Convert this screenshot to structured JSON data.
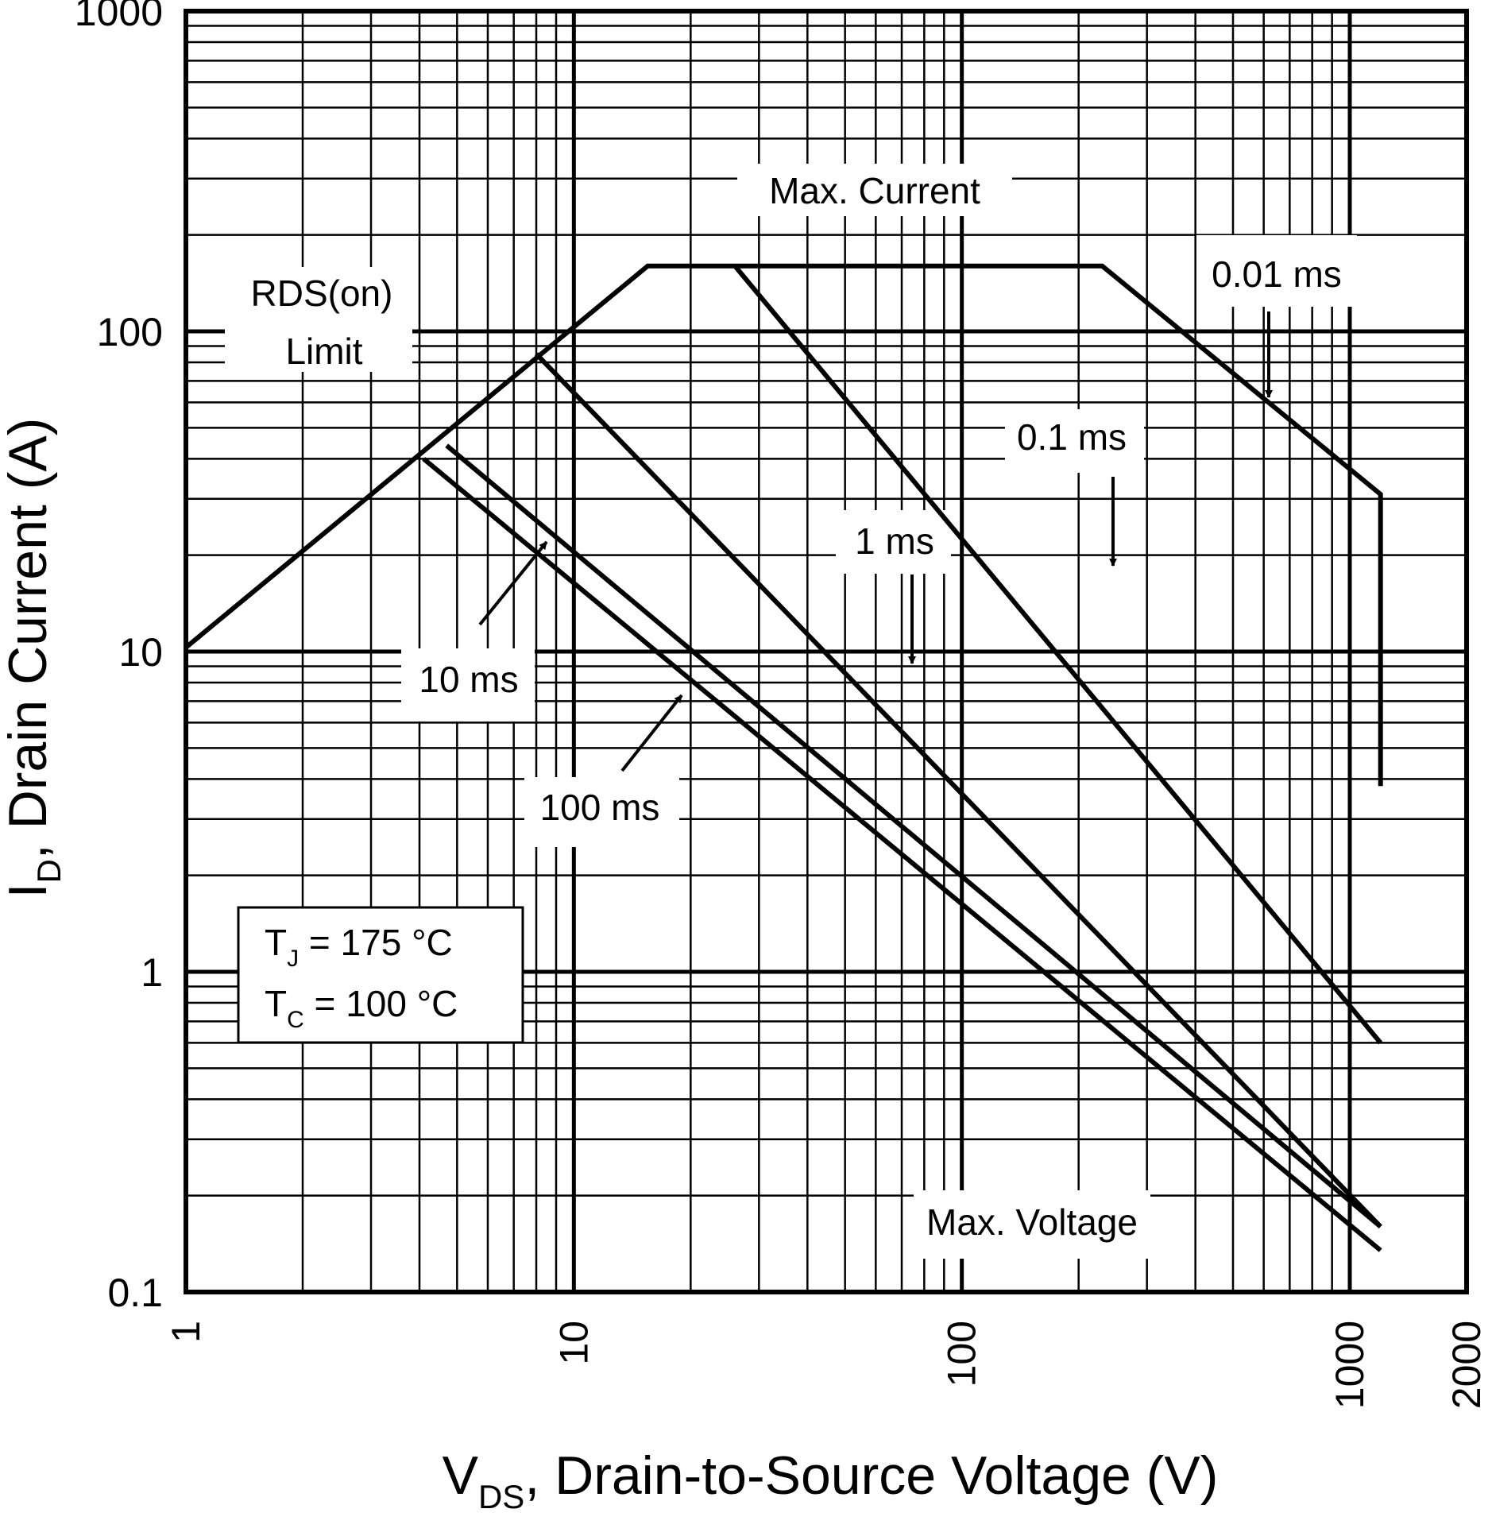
{
  "chart_data": {
    "type": "line",
    "x_scale": "log",
    "y_scale": "log",
    "xlim": [
      1,
      2000
    ],
    "ylim": [
      0.1,
      1000
    ],
    "grid": true,
    "xlabel": {
      "main": "V",
      "sub": "DS",
      "rest": ", Drain-to-Source Voltage (V)"
    },
    "ylabel": {
      "main": "I",
      "sub": "D",
      "rest": ", Drain Current (A)"
    },
    "x_ticks": [
      {
        "value": 1,
        "label": "1"
      },
      {
        "value": 10,
        "label": "10"
      },
      {
        "value": 100,
        "label": "100"
      },
      {
        "value": 1000,
        "label": "1000"
      },
      {
        "value": 2000,
        "label": "2000"
      }
    ],
    "y_ticks": [
      {
        "value": 0.1,
        "label": "0.1"
      },
      {
        "value": 1,
        "label": "1"
      },
      {
        "value": 10,
        "label": "10"
      },
      {
        "value": 100,
        "label": "100"
      },
      {
        "value": 1000,
        "label": "1000"
      }
    ],
    "series": [
      {
        "points": [
          [
            1,
            10.3
          ],
          [
            15.5,
            160
          ],
          [
            230,
            160
          ],
          [
            1200,
            31
          ],
          [
            1200,
            3.8
          ]
        ]
      },
      {
        "points": [
          [
            26,
            160
          ],
          [
            1200,
            0.6
          ]
        ]
      },
      {
        "points": [
          [
            8,
            85
          ],
          [
            1200,
            0.16
          ]
        ]
      },
      {
        "points": [
          [
            4.7,
            44
          ],
          [
            1200,
            0.16
          ]
        ]
      },
      {
        "points": [
          [
            4.1,
            40
          ],
          [
            1200,
            0.135
          ]
        ]
      }
    ],
    "annotations": [
      {
        "text": "Max. Current"
      },
      {
        "text": "RDS(on)"
      },
      {
        "text": "Limit"
      },
      {
        "text": "0.01 ms"
      },
      {
        "text": "0.1 ms"
      },
      {
        "text": "1 ms"
      },
      {
        "text": "10 ms"
      },
      {
        "text": "100 ms"
      },
      {
        "text": "Max. Voltage"
      }
    ],
    "conditions": {
      "tj": {
        "main": "T",
        "sub": "J",
        "rest": " = 175 °C"
      },
      "tc": {
        "main": "T",
        "sub": "C",
        "rest": " = 100 °C"
      }
    }
  }
}
